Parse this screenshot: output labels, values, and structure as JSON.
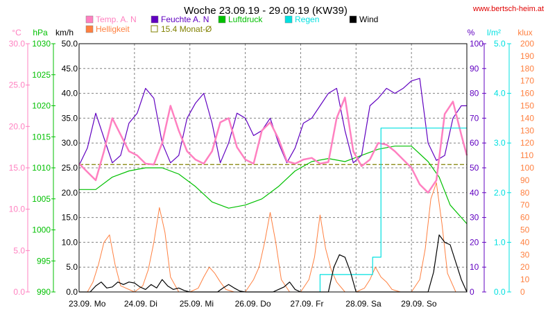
{
  "chart_data": {
    "type": "line",
    "title": "Woche 23.09.19 - 29.09.19 (KW39)",
    "source": "www.bertsch-heim.at",
    "colors": {
      "temp": "#ff80c0",
      "humidity": "#6000c0",
      "pressure": "#00c000",
      "rain": "#00e0e0",
      "wind": "#000000",
      "brightness": "#ff8040",
      "monthly_avg": "#808000",
      "grid": "#808080"
    },
    "axes": [
      {
        "id": "temp",
        "label": "°C",
        "min": 0,
        "max": 30,
        "ticks": [
          "0.0",
          "5.0",
          "10.0",
          "15.0",
          "20.0",
          "25.0",
          "30.0"
        ]
      },
      {
        "id": "pressure",
        "label": "hPa",
        "min": 990,
        "max": 1030,
        "ticks": [
          "990",
          "995",
          "1000",
          "1005",
          "1010",
          "1015",
          "1020",
          "1025",
          "1030"
        ]
      },
      {
        "id": "wind",
        "label": "km/h",
        "min": 0,
        "max": 50,
        "ticks": [
          "0.0",
          "5.0",
          "10.0",
          "15.0",
          "20.0",
          "25.0",
          "30.0",
          "35.0",
          "40.0",
          "45.0",
          "50.0"
        ]
      },
      {
        "id": "humidity",
        "label": "%",
        "min": 0,
        "max": 100,
        "ticks": [
          "0",
          "10",
          "20",
          "30",
          "40",
          "50",
          "60",
          "70",
          "80",
          "90",
          "100"
        ]
      },
      {
        "id": "rain",
        "label": "l/m²",
        "min": 0,
        "max": 5,
        "ticks": [
          "0.0",
          "1.0",
          "2.0",
          "3.0",
          "4.0",
          "5.0"
        ]
      },
      {
        "id": "brightness",
        "label": "klux",
        "min": 0,
        "max": 200,
        "ticks": [
          "0",
          "10",
          "20",
          "30",
          "40",
          "50",
          "60",
          "70",
          "80",
          "90",
          "100",
          "110",
          "120",
          "130",
          "140",
          "150",
          "160",
          "170",
          "180",
          "190",
          "200"
        ]
      }
    ],
    "x_days": [
      "23.09. Mo",
      "24.09. Di",
      "25.09. Mi",
      "26.09. Do",
      "27.09. Fr",
      "28.09. Sa",
      "29.09. So"
    ],
    "x_range_days": [
      0,
      7
    ],
    "legend": [
      {
        "key": "temp",
        "label": "Temp. A. N",
        "style": "fill"
      },
      {
        "key": "humidity",
        "label": "Feuchte A. N",
        "style": "fill"
      },
      {
        "key": "pressure",
        "label": "Luftdruck",
        "style": "fill"
      },
      {
        "key": "rain",
        "label": "Regen",
        "style": "fill"
      },
      {
        "key": "wind",
        "label": "Wind",
        "style": "fill"
      },
      {
        "key": "brightness",
        "label": "Helligkeit",
        "style": "fill"
      },
      {
        "key": "monthly_avg",
        "label": "15.4 Monat-Ø",
        "style": "outline"
      }
    ],
    "monthly_avg": {
      "value": 15.4,
      "axis": "temp"
    },
    "series": [
      {
        "key": "temp",
        "axis": "temp",
        "x": [
          0.0,
          0.15,
          0.3,
          0.45,
          0.6,
          0.75,
          0.9,
          1.05,
          1.2,
          1.35,
          1.5,
          1.65,
          1.8,
          1.95,
          2.1,
          2.25,
          2.4,
          2.55,
          2.7,
          2.85,
          3.0,
          3.15,
          3.3,
          3.45,
          3.6,
          3.75,
          3.9,
          4.05,
          4.2,
          4.35,
          4.5,
          4.65,
          4.8,
          4.95,
          5.1,
          5.25,
          5.4,
          5.55,
          5.7,
          5.85,
          6.0,
          6.15,
          6.3,
          6.45,
          6.6,
          6.75,
          6.9,
          7.0
        ],
        "y": [
          15.5,
          14.5,
          13.5,
          17.0,
          21.0,
          19.0,
          17.0,
          16.5,
          15.5,
          15.4,
          18.0,
          22.5,
          19.5,
          17.0,
          16.0,
          15.5,
          17.0,
          20.5,
          21.0,
          17.5,
          16.0,
          15.5,
          19.5,
          20.5,
          18.5,
          15.8,
          15.5,
          16.0,
          16.2,
          15.5,
          15.7,
          21.0,
          23.5,
          17.0,
          15.2,
          16.0,
          18.0,
          17.8,
          17.0,
          16.0,
          15.0,
          13.0,
          12.0,
          13.5,
          21.5,
          23.0,
          19.0,
          16.5
        ]
      },
      {
        "key": "humidity",
        "axis": "humidity",
        "x": [
          0.0,
          0.15,
          0.3,
          0.45,
          0.6,
          0.75,
          0.9,
          1.05,
          1.2,
          1.35,
          1.5,
          1.65,
          1.8,
          1.95,
          2.1,
          2.25,
          2.4,
          2.55,
          2.7,
          2.85,
          3.0,
          3.15,
          3.3,
          3.45,
          3.6,
          3.75,
          3.9,
          4.05,
          4.2,
          4.35,
          4.5,
          4.65,
          4.8,
          4.95,
          5.1,
          5.25,
          5.4,
          5.55,
          5.7,
          5.85,
          6.0,
          6.15,
          6.3,
          6.45,
          6.6,
          6.75,
          6.9,
          7.0
        ],
        "y": [
          51,
          58,
          72,
          62,
          52,
          55,
          68,
          72,
          82,
          78,
          60,
          52,
          55,
          70,
          76,
          80,
          68,
          52,
          60,
          72,
          70,
          63,
          65,
          70,
          60,
          52,
          58,
          68,
          70,
          75,
          80,
          82,
          65,
          52,
          55,
          75,
          78,
          82,
          80,
          82,
          85,
          86,
          60,
          53,
          55,
          70,
          75,
          75
        ]
      },
      {
        "key": "pressure",
        "axis": "pressure",
        "x": [
          0.0,
          0.3,
          0.6,
          0.9,
          1.2,
          1.5,
          1.8,
          2.1,
          2.4,
          2.7,
          3.0,
          3.3,
          3.6,
          3.9,
          4.2,
          4.5,
          4.8,
          5.1,
          5.4,
          5.7,
          6.0,
          6.3,
          6.5,
          6.7,
          7.0
        ],
        "y": [
          1006.5,
          1006.5,
          1008.5,
          1009.5,
          1010,
          1010,
          1009,
          1007,
          1004.5,
          1003.5,
          1004,
          1005,
          1007,
          1009.5,
          1011,
          1011.5,
          1011,
          1012,
          1013,
          1013.5,
          1013.5,
          1011,
          1008.5,
          1004,
          1001
        ]
      },
      {
        "key": "rain",
        "axis": "rain",
        "x": [
          4.35,
          4.35,
          4.5,
          4.75,
          5.1,
          5.3,
          5.3,
          5.45,
          5.45,
          5.6,
          5.6,
          7.0
        ],
        "y": [
          0.0,
          0.35,
          0.35,
          0.35,
          0.35,
          0.35,
          0.7,
          0.7,
          3.3,
          3.3,
          3.3,
          3.3
        ]
      },
      {
        "key": "wind",
        "axis": "wind",
        "x": [
          0.0,
          0.2,
          0.3,
          0.4,
          0.5,
          0.6,
          0.7,
          0.8,
          0.9,
          1.0,
          1.1,
          1.2,
          1.3,
          1.4,
          1.5,
          1.6,
          1.7,
          1.8,
          1.9,
          2.0,
          2.5,
          2.6,
          2.7,
          2.8,
          2.9,
          3.0,
          3.5,
          3.6,
          3.7,
          3.8,
          3.9,
          4.0,
          4.5,
          4.6,
          4.7,
          4.8,
          4.9,
          5.0,
          5.5,
          5.6,
          5.7,
          5.8,
          5.9,
          6.0,
          6.3,
          6.4,
          6.5,
          6.6,
          6.7,
          6.8,
          6.9,
          7.0
        ],
        "y": [
          0.0,
          0.0,
          1.2,
          2.0,
          0.8,
          1.0,
          2.0,
          1.5,
          2.0,
          1.8,
          1.0,
          0.5,
          1.5,
          0.8,
          2.5,
          1.2,
          0.5,
          0.8,
          0.3,
          0.0,
          0.0,
          0.8,
          1.5,
          0.8,
          0.2,
          0.0,
          0.0,
          0.5,
          1.0,
          2.0,
          0.5,
          0.0,
          0.0,
          5.0,
          7.5,
          7.0,
          4.0,
          0.0,
          0.0,
          0.0,
          0.0,
          0.0,
          0.0,
          0.0,
          0.0,
          4.0,
          11.5,
          10.0,
          9.5,
          6.0,
          2.5,
          0.0
        ]
      },
      {
        "key": "brightness",
        "axis": "brightness",
        "x": [
          0.0,
          0.15,
          0.25,
          0.35,
          0.45,
          0.55,
          0.65,
          0.75,
          1.0,
          1.15,
          1.25,
          1.35,
          1.45,
          1.55,
          1.65,
          1.8,
          2.0,
          2.15,
          2.25,
          2.35,
          2.45,
          2.55,
          2.65,
          2.8,
          3.0,
          3.15,
          3.25,
          3.35,
          3.45,
          3.55,
          3.65,
          3.8,
          4.0,
          4.15,
          4.25,
          4.35,
          4.45,
          4.55,
          4.65,
          4.8,
          5.0,
          5.15,
          5.25,
          5.35,
          5.45,
          5.55,
          5.65,
          5.8,
          6.0,
          6.15,
          6.25,
          6.35,
          6.45,
          6.55,
          6.65,
          6.8,
          7.0
        ],
        "y": [
          0,
          0,
          8,
          22,
          40,
          46,
          22,
          5,
          0,
          5,
          18,
          40,
          68,
          48,
          12,
          0,
          0,
          3,
          12,
          20,
          15,
          8,
          2,
          0,
          0,
          10,
          20,
          40,
          64,
          40,
          10,
          0,
          0,
          10,
          28,
          62,
          35,
          18,
          8,
          0,
          0,
          3,
          10,
          20,
          12,
          8,
          2,
          0,
          0,
          10,
          35,
          75,
          88,
          55,
          15,
          0,
          0
        ]
      }
    ]
  }
}
